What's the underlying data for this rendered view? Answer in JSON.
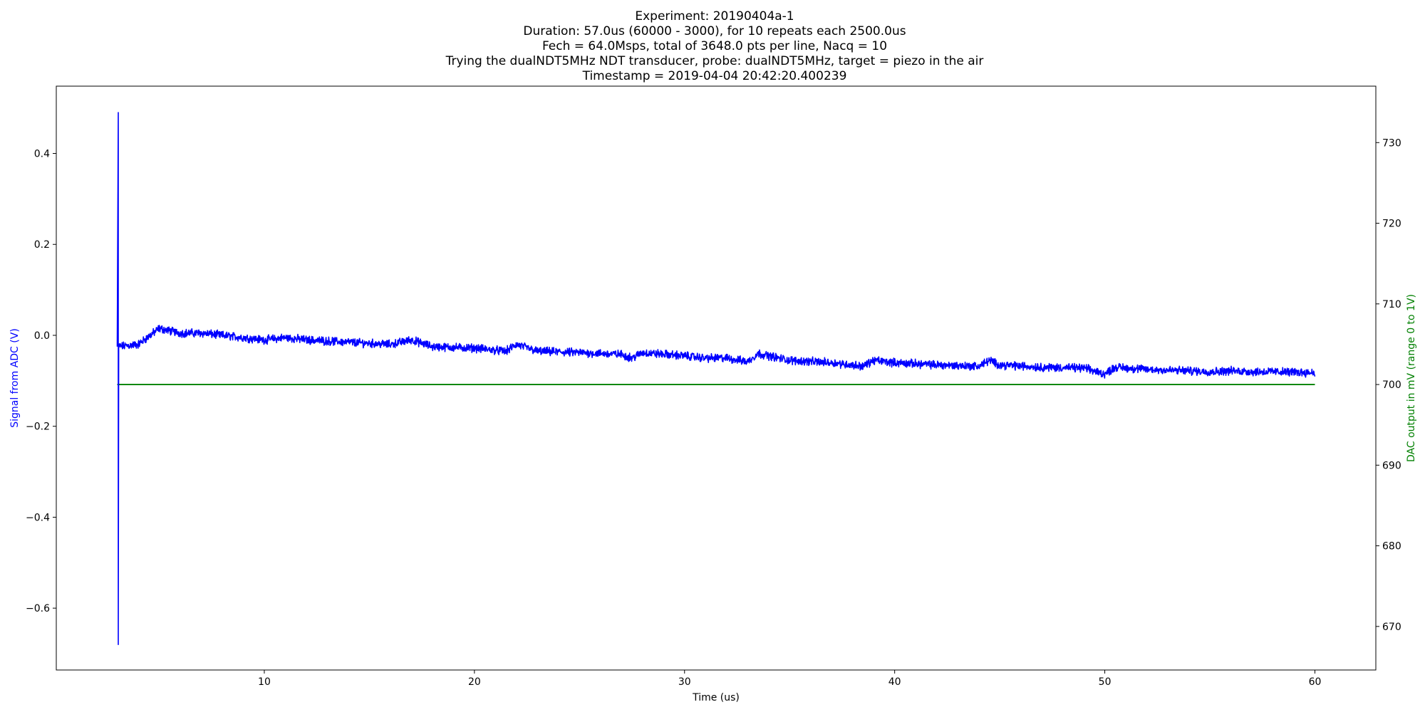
{
  "chart_data": {
    "type": "line",
    "title_lines": [
      "Experiment: 20190404a-1",
      "Duration: 57.0us (60000 - 3000), for 10 repeats each 2500.0us",
      "Fech = 64.0Msps, total of 3648.0 pts per line, Nacq = 10",
      "Trying the dualNDT5MHz NDT transducer, probe: dualNDT5MHz, target = piezo in the air",
      "Timestamp = 2019-04-04 20:42:20.400239"
    ],
    "xlabel": "Time (us)",
    "ylabel_left": "Signal from ADC (V)",
    "ylabel_right": "DAC output in mV (range 0 to 1V)",
    "xlim": [
      0.1,
      62.9
    ],
    "ylim_left": [
      -0.736,
      0.548
    ],
    "ylim_right": [
      664.6,
      737.0
    ],
    "x_ticks": [
      10,
      20,
      30,
      40,
      50,
      60
    ],
    "y_left_ticks": [
      0.4,
      0.2,
      0.0,
      -0.2,
      -0.4,
      -0.6
    ],
    "y_left_tick_labels": [
      "0.4",
      "0.2",
      "0.0",
      "−0.2",
      "−0.4",
      "−0.6"
    ],
    "y_right_ticks": [
      730,
      720,
      710,
      700,
      690,
      680,
      670
    ],
    "grid": false,
    "colors": {
      "signal": "#0000ff",
      "dac": "#008000",
      "left_label": "#0000ff",
      "right_label": "#008000"
    },
    "series": [
      {
        "axis": "left",
        "x_start": 3.0,
        "x_end": 60.0,
        "spike": {
          "x": 3.05,
          "max": 0.49,
          "min": -0.68
        },
        "baseline": [
          [
            3.0,
            -0.025
          ],
          [
            4.0,
            -0.02
          ],
          [
            5.0,
            0.015
          ],
          [
            6.0,
            0.005
          ],
          [
            7.0,
            0.005
          ],
          [
            8.0,
            0.0
          ],
          [
            9.0,
            -0.005
          ],
          [
            10.0,
            -0.01
          ],
          [
            11.0,
            -0.005
          ],
          [
            12.0,
            -0.01
          ],
          [
            14.0,
            -0.015
          ],
          [
            16.0,
            -0.02
          ],
          [
            17.0,
            -0.01
          ],
          [
            18.0,
            -0.025
          ],
          [
            20.0,
            -0.028
          ],
          [
            21.5,
            -0.035
          ],
          [
            22.0,
            -0.02
          ],
          [
            23.0,
            -0.035
          ],
          [
            25.0,
            -0.038
          ],
          [
            27.0,
            -0.042
          ],
          [
            27.5,
            -0.05
          ],
          [
            28.0,
            -0.038
          ],
          [
            30.0,
            -0.045
          ],
          [
            31.0,
            -0.05
          ],
          [
            32.0,
            -0.05
          ],
          [
            33.0,
            -0.058
          ],
          [
            33.5,
            -0.04
          ],
          [
            35.0,
            -0.055
          ],
          [
            37.0,
            -0.06
          ],
          [
            38.5,
            -0.068
          ],
          [
            39.0,
            -0.055
          ],
          [
            40.0,
            -0.06
          ],
          [
            42.0,
            -0.065
          ],
          [
            44.0,
            -0.068
          ],
          [
            44.5,
            -0.055
          ],
          [
            45.0,
            -0.065
          ],
          [
            47.0,
            -0.07
          ],
          [
            49.0,
            -0.072
          ],
          [
            50.0,
            -0.085
          ],
          [
            50.5,
            -0.07
          ],
          [
            52.0,
            -0.075
          ],
          [
            54.0,
            -0.078
          ],
          [
            55.0,
            -0.08
          ],
          [
            56.0,
            -0.078
          ],
          [
            57.0,
            -0.08
          ],
          [
            58.0,
            -0.08
          ],
          [
            60.0,
            -0.082
          ]
        ]
      },
      {
        "axis": "right",
        "x_start": 3.0,
        "x_end": 60.0,
        "value": 700
      }
    ]
  }
}
